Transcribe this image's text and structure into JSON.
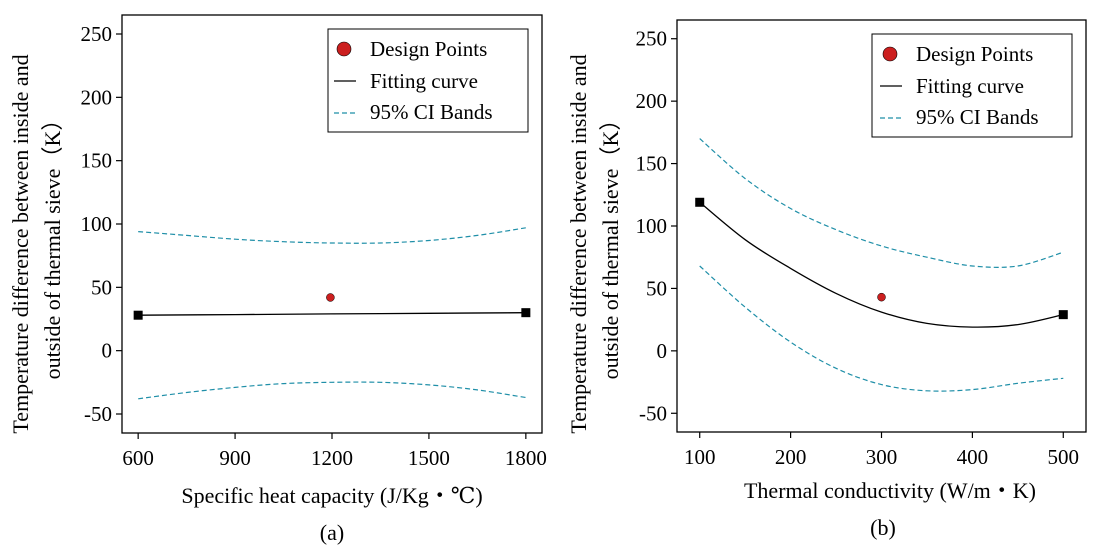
{
  "colors": {
    "design_point": "#cc1f1f",
    "fit_line": "#000000",
    "ci_band": "#1f8fa8",
    "axis": "#000000",
    "endpoint_marker": "#000000"
  },
  "chart_data": [
    {
      "panel_label": "(a)",
      "type": "scatter",
      "title": "",
      "xlabel": "Specific heat capacity (J/Kg・℃)",
      "ylabel_line1": "Temperature difference between inside and",
      "ylabel_line2": "outside of thermal sieve（K）",
      "xlim": [
        550,
        1850
      ],
      "ylim": [
        -65,
        265
      ],
      "xticks": [
        600,
        900,
        1200,
        1500,
        1800
      ],
      "xtick_labels": [
        "600",
        "900",
        "1200",
        "1500",
        "1800"
      ],
      "yticks": [
        -50,
        0,
        50,
        100,
        150,
        200,
        250
      ],
      "ytick_labels": [
        "-50",
        "0",
        "50",
        "100",
        "150",
        "200",
        "250"
      ],
      "legend_position": "top-right",
      "legend": {
        "design_points": "Design Points",
        "fitting_curve": "Fitting curve",
        "ci_bands": "95% CI Bands"
      },
      "design_points": [
        {
          "x": 1195,
          "y": 42
        }
      ],
      "endpoints": [
        {
          "x": 600,
          "y": 28
        },
        {
          "x": 1800,
          "y": 30
        }
      ],
      "fit_curve": {
        "x": [
          600,
          900,
          1200,
          1500,
          1800
        ],
        "y": [
          28,
          28.5,
          29,
          29.5,
          30
        ]
      },
      "ci_upper": {
        "x": [
          600,
          750,
          900,
          1050,
          1200,
          1350,
          1500,
          1650,
          1800
        ],
        "y": [
          94,
          91,
          88,
          86,
          85,
          85,
          87,
          91,
          97
        ]
      },
      "ci_lower": {
        "x": [
          600,
          750,
          900,
          1050,
          1200,
          1350,
          1500,
          1650,
          1800
        ],
        "y": [
          -38,
          -33,
          -29,
          -26,
          -25,
          -25,
          -27,
          -31,
          -37
        ]
      }
    },
    {
      "panel_label": "(b)",
      "type": "scatter",
      "title": "",
      "xlabel": "Thermal conductivity (W/m・K)",
      "ylabel_line1": "Temperature difference between inside and",
      "ylabel_line2": "outside of thermal sieve（K）",
      "xlim": [
        75,
        525
      ],
      "ylim": [
        -65,
        265
      ],
      "xticks": [
        100,
        200,
        300,
        400,
        500
      ],
      "xtick_labels": [
        "100",
        "200",
        "300",
        "400",
        "500"
      ],
      "yticks": [
        -50,
        0,
        50,
        100,
        150,
        200,
        250
      ],
      "ytick_labels": [
        "-50",
        "0",
        "50",
        "100",
        "150",
        "200",
        "250"
      ],
      "legend_position": "top-right",
      "legend": {
        "design_points": "Design Points",
        "fitting_curve": "Fitting curve",
        "ci_bands": "95% CI Bands"
      },
      "design_points": [
        {
          "x": 300,
          "y": 43
        }
      ],
      "endpoints": [
        {
          "x": 100,
          "y": 119
        },
        {
          "x": 500,
          "y": 29
        }
      ],
      "fit_curve": {
        "x": [
          100,
          150,
          200,
          250,
          300,
          350,
          400,
          450,
          500
        ],
        "y": [
          119,
          89,
          66,
          46,
          31,
          22,
          19,
          21,
          29
        ]
      },
      "ci_upper": {
        "x": [
          100,
          150,
          200,
          250,
          300,
          350,
          400,
          450,
          500
        ],
        "y": [
          170,
          138,
          114,
          97,
          84,
          75,
          68,
          68,
          79
        ]
      },
      "ci_lower": {
        "x": [
          100,
          150,
          200,
          250,
          300,
          350,
          400,
          450,
          500
        ],
        "y": [
          68,
          35,
          7,
          -14,
          -27,
          -32,
          -31,
          -26,
          -22
        ]
      }
    }
  ]
}
